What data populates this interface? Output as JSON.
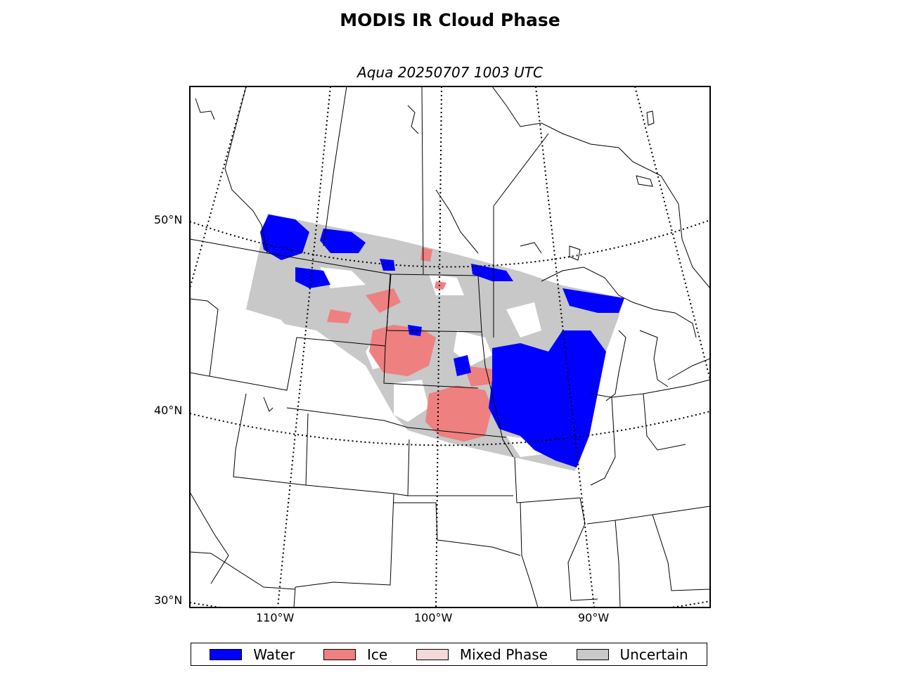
{
  "title": "MODIS IR Cloud Phase",
  "subtitle": "Aqua 20250707 1003 UTC",
  "lat_labels": [
    "50°N",
    "40°N",
    "30°N"
  ],
  "lon_labels": [
    "110°W",
    "100°W",
    "90°W"
  ],
  "legend": [
    {
      "label": "Water",
      "color": "#0000ff"
    },
    {
      "label": "Ice",
      "color": "#ee8080"
    },
    {
      "label": "Mixed Phase",
      "color": "#f5d8d8"
    },
    {
      "label": "Uncertain",
      "color": "#c8c8c8"
    }
  ],
  "colors": {
    "water": "#0000ff",
    "ice": "#ee8080",
    "mixed": "#f5d8d8",
    "uncertain": "#c8c8c8",
    "boundaries": "#000000"
  }
}
